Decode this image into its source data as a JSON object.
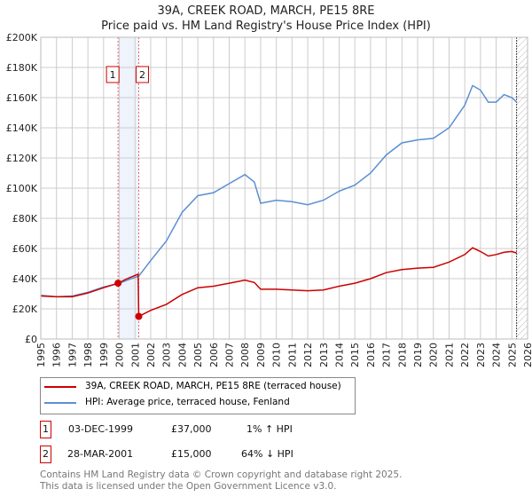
{
  "chart_data": {
    "type": "line",
    "title": "39A, CREEK ROAD, MARCH, PE15 8RE",
    "subtitle": "Price paid vs. HM Land Registry's House Price Index (HPI)",
    "xlim": [
      1995,
      2026
    ],
    "ylim": [
      0,
      200000
    ],
    "x_ticks": [
      "1995",
      "1996",
      "1997",
      "1998",
      "1999",
      "2000",
      "2001",
      "2002",
      "2003",
      "2004",
      "2005",
      "2006",
      "2007",
      "2008",
      "2009",
      "2010",
      "2011",
      "2012",
      "2013",
      "2014",
      "2015",
      "2016",
      "2017",
      "2018",
      "2019",
      "2020",
      "2021",
      "2022",
      "2023",
      "2024",
      "2025",
      "2026"
    ],
    "y_ticks": [
      {
        "v": 0,
        "label": "£0"
      },
      {
        "v": 20000,
        "label": "£20K"
      },
      {
        "v": 40000,
        "label": "£40K"
      },
      {
        "v": 60000,
        "label": "£60K"
      },
      {
        "v": 80000,
        "label": "£80K"
      },
      {
        "v": 100000,
        "label": "£100K"
      },
      {
        "v": 120000,
        "label": "£120K"
      },
      {
        "v": 140000,
        "label": "£140K"
      },
      {
        "v": 160000,
        "label": "£160K"
      },
      {
        "v": 180000,
        "label": "£180K"
      },
      {
        "v": 200000,
        "label": "£200K"
      }
    ],
    "grid": true,
    "series": [
      {
        "name": "39A, CREEK ROAD, MARCH, PE15 8RE (terraced house)",
        "color": "#cc0000",
        "x": [
          1995,
          1996,
          1997,
          1998,
          1999,
          1999.92,
          2000.5,
          2001.2,
          2001.24,
          2002,
          2003,
          2004,
          2005,
          2006,
          2007,
          2008,
          2008.6,
          2009,
          2010,
          2011,
          2012,
          2013,
          2014,
          2015,
          2016,
          2017,
          2018,
          2019,
          2020,
          2021,
          2022,
          2022.5,
          2023,
          2023.5,
          2024,
          2024.5,
          2025,
          2025.3
        ],
        "y": [
          28500,
          28000,
          28000,
          30500,
          34000,
          37000,
          40000,
          43000,
          15000,
          19000,
          23000,
          29500,
          34000,
          35000,
          37000,
          39000,
          37500,
          33000,
          33000,
          32500,
          32000,
          32500,
          35000,
          37000,
          40000,
          44000,
          46000,
          47000,
          47500,
          51000,
          56000,
          60500,
          58000,
          55000,
          56000,
          57500,
          58000,
          57000
        ]
      },
      {
        "name": "HPI: Average price, terraced house, Fenland",
        "color": "#5b8fd4",
        "x": [
          1995,
          1996,
          1997,
          1998,
          1999,
          1999.92,
          2000.5,
          2001.24,
          2002,
          2003,
          2004,
          2005,
          2006,
          2007,
          2008,
          2008.6,
          2009,
          2010,
          2011,
          2012,
          2013,
          2014,
          2015,
          2016,
          2017,
          2018,
          2019,
          2020,
          2021,
          2022,
          2022.5,
          2023,
          2023.5,
          2024,
          2024.5,
          2025,
          2025.3
        ],
        "y": [
          29000,
          28000,
          28500,
          31000,
          34500,
          36600,
          39000,
          41700,
          52000,
          65000,
          84000,
          95000,
          97000,
          103000,
          109000,
          104000,
          90000,
          92000,
          91000,
          89000,
          92000,
          98000,
          102000,
          110000,
          122000,
          130000,
          132000,
          133000,
          140000,
          155000,
          168000,
          165000,
          157000,
          157000,
          162000,
          160000,
          157000
        ]
      }
    ],
    "sales": [
      {
        "id": "1",
        "x": 1999.92,
        "y": 37000,
        "date": "03-DEC-1999",
        "price": "£37,000",
        "hpi": "1% ↑ HPI"
      },
      {
        "id": "2",
        "x": 2001.24,
        "y": 15000,
        "date": "28-MAR-2001",
        "price": "£15,000",
        "hpi": "64% ↓ HPI"
      }
    ],
    "forecast_start": 2025.3
  },
  "footer": {
    "line1": "Contains HM Land Registry data © Crown copyright and database right 2025.",
    "line2": "This data is licensed under the Open Government Licence v3.0."
  }
}
